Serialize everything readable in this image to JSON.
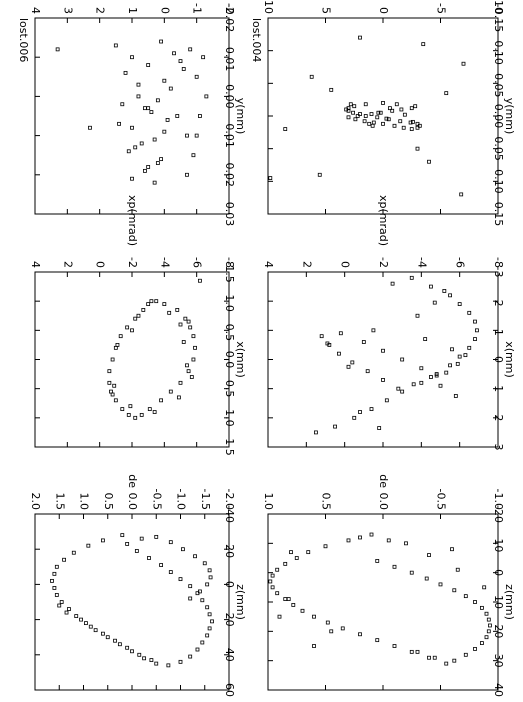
{
  "figure": {
    "rotation": "page rotated 90 degrees clockwise",
    "layout": "3 columns x 2 rows of scatter panels"
  },
  "chart_data": [
    {
      "type": "scatter",
      "title": "lost.004",
      "xlabel": "y(mm)",
      "ylabel": "yp(mrad)",
      "xlim": [
        -0.15,
        0.15
      ],
      "ylim": [
        -10,
        10
      ],
      "xticks": [
        "-0.15",
        "-0.10",
        "-0.05",
        "0.00",
        "0.05",
        "0.10",
        "0.15"
      ],
      "yticks": [
        "-10",
        "-5",
        "0",
        "5",
        "10"
      ],
      "x": [
        -0.02,
        -0.018,
        -0.015,
        -0.012,
        -0.01,
        -0.008,
        -0.005,
        -0.003,
        0,
        0.002,
        0.005,
        0.008,
        0.01,
        0.012,
        0.015,
        0.018,
        0.02,
        0.018,
        0.015,
        0.012,
        0.01,
        0.008,
        0.005,
        0.002,
        0,
        -0.003,
        -0.005,
        -0.008,
        -0.01,
        -0.012,
        -0.015,
        -0.018,
        -0.005,
        0.004,
        0.012,
        -0.012,
        0.015,
        -0.018,
        0.009,
        -0.002,
        -0.06,
        0.12,
        -0.11,
        0.09,
        -0.04,
        0.07,
        0.02,
        -0.08,
        -0.035,
        0.05,
        -0.12,
        0.095
      ],
      "y": [
        0,
        1.5,
        2.5,
        3,
        3.2,
        3,
        2.6,
        2,
        1.5,
        0.5,
        -0.5,
        -1.5,
        -2.4,
        -3,
        -3.2,
        -3,
        -2.5,
        -1.8,
        -1,
        0,
        0.8,
        1.6,
        2.4,
        3,
        2.2,
        1,
        0.2,
        -0.8,
        -1.6,
        -2.5,
        -2.8,
        -1.2,
        0.4,
        -0.3,
        1.2,
        -0.6,
        0.9,
        2.8,
        -2.6,
        -1.9,
        6.2,
        -6.8,
        -3.5,
        5.5,
        4.5,
        -4,
        8.5,
        -7,
        -5.5,
        -3,
        2,
        9.8
      ]
    },
    {
      "type": "scatter",
      "title": "lost.006",
      "xlabel": "y(mm)",
      "ylabel": "yp(mrad)",
      "xlim": [
        -0.02,
        0.03
      ],
      "ylim": [
        -2,
        4
      ],
      "xticks": [
        "-0.02",
        "-0.01",
        "0.00",
        "0.01",
        "0.02",
        "0.03"
      ],
      "yticks": [
        "-2",
        "-1",
        "0",
        "1",
        "2",
        "3",
        "4"
      ],
      "x": [
        -0.012,
        -0.01,
        -0.005,
        0,
        0.005,
        0.01,
        0.015,
        0.02,
        -0.008,
        -0.003,
        0.003,
        0.008,
        0.012,
        0.018,
        -0.013,
        -0.006,
        0.002,
        0.007,
        0.014,
        0.021,
        -0.011,
        -0.004,
        0.001,
        0.006,
        0.011,
        0.016,
        -0.009,
        -0.002,
        0.004,
        0.009,
        0.013,
        0.019,
        -0.014,
        -0.007,
        0,
        0.005,
        0.017,
        -0.01,
        0.003,
        0.01,
        0.022,
        -0.012,
        0.008
      ],
      "y": [
        -0.8,
        -1.2,
        -1.0,
        -1.3,
        -1.1,
        -1.0,
        -0.9,
        -0.7,
        0.5,
        0.8,
        0.6,
        1.0,
        0.7,
        0.5,
        1.5,
        1.2,
        1.3,
        1.4,
        1.1,
        1.0,
        -0.3,
        0.0,
        0.2,
        -0.1,
        0.3,
        0.1,
        -0.5,
        -0.2,
        0.4,
        0.0,
        0.9,
        0.6,
        0.1,
        -0.6,
        0.8,
        -0.4,
        0.2,
        1.0,
        0.5,
        -0.7,
        0.3,
        3.3,
        2.3
      ]
    },
    {
      "type": "scatter",
      "title": "",
      "xlabel": "x(mm)",
      "ylabel": "xp(mrad)",
      "xlim": [
        -3,
        3
      ],
      "ylim": [
        -8,
        4
      ],
      "xticks": [
        "-3",
        "-2",
        "-1",
        "0",
        "1",
        "2",
        "3"
      ],
      "yticks": [
        "-8",
        "-6",
        "-4",
        "-2",
        "0",
        "2",
        "4"
      ],
      "x": [
        -2.8,
        -2.5,
        -2.2,
        -1.9,
        -1.6,
        -1.3,
        -1.0,
        -0.7,
        -0.4,
        -0.1,
        0.2,
        0.5,
        0.8,
        1.1,
        1.4,
        1.7,
        2.0,
        2.3,
        -0.9,
        -0.6,
        -0.3,
        0,
        0.3,
        0.6,
        0.9,
        1.0,
        0.7,
        0.4,
        0.1,
        -0.2,
        -0.5,
        -0.8,
        -1.0,
        -0.7,
        -0.35,
        0.15,
        0.55,
        0.85,
        -0.55,
        0.25,
        2.5,
        -2.6,
        1.8,
        -1.5,
        0.45,
        -0.15,
        1.25,
        -1.95,
        2.35,
        -2.35
      ],
      "y": [
        -3.5,
        -4.5,
        -5.5,
        -6.0,
        -6.5,
        -6.8,
        -6.9,
        -6.8,
        -6.5,
        -6.0,
        -5.5,
        -4.8,
        -4.0,
        -3.0,
        -2.2,
        -1.4,
        -0.5,
        0.5,
        0.2,
        -1.0,
        -2.0,
        -3.0,
        -4.0,
        -4.5,
        -5.0,
        -2.8,
        -2.0,
        -1.2,
        -0.4,
        0.3,
        0.8,
        1.2,
        -1.5,
        -4.2,
        -5.6,
        -5.9,
        -4.8,
        -3.6,
        0.9,
        -0.2,
        1.5,
        -2.5,
        -0.8,
        -3.8,
        -5.3,
        -6.3,
        -5.8,
        -4.7,
        -1.8,
        -5.2
      ]
    },
    {
      "type": "scatter",
      "title": "",
      "xlabel": "x(mm)",
      "ylabel": "xp(mrad)",
      "xlim": [
        -1.5,
        1.5
      ],
      "ylim": [
        -8,
        4
      ],
      "xticks": [
        "-1.5",
        "-1.0",
        "-0.5",
        "0.0",
        "0.5",
        "1.0",
        "1.5"
      ],
      "yticks": [
        "-8",
        "-6",
        "-4",
        "-2",
        "0",
        "2",
        "4"
      ],
      "x": [
        -1.0,
        -0.95,
        -0.85,
        -0.7,
        -0.55,
        -0.4,
        -0.2,
        0,
        0.2,
        0.4,
        0.55,
        0.7,
        0.85,
        0.95,
        1.0,
        0.95,
        0.85,
        0.7,
        0.55,
        0.4,
        0.2,
        0,
        -0.2,
        -0.4,
        -0.55,
        -0.7,
        -0.85,
        -0.95,
        -1.0,
        -0.8,
        -0.6,
        -0.3,
        0.1,
        0.3,
        0.65,
        0.9,
        -0.5,
        0.45,
        -0.75,
        0.8,
        -0.25,
        0.6,
        -0.65,
        -1.35
      ],
      "y": [
        -3.2,
        -4.0,
        -4.8,
        -5.3,
        -5.6,
        -5.8,
        -5.9,
        -5.8,
        -5.5,
        -5.0,
        -4.4,
        -3.8,
        -3.1,
        -2.6,
        -2.2,
        -1.8,
        -1.4,
        -1.0,
        -0.7,
        -0.6,
        -0.6,
        -0.8,
        -1.0,
        -1.3,
        -1.7,
        -2.2,
        -2.7,
        -3.0,
        -3.5,
        -4.3,
        -5.0,
        -5.2,
        -5.4,
        -5.7,
        -4.9,
        -3.4,
        -2.0,
        -0.9,
        -2.4,
        -1.9,
        -1.1,
        -0.8,
        -5.5,
        -6.2
      ]
    },
    {
      "type": "scatter",
      "title": "",
      "xlabel": "z(mm)",
      "ylabel": "de",
      "xlim": [
        -20,
        40
      ],
      "ylim": [
        -1.0,
        1.0
      ],
      "xticks": [
        "-20",
        "-10",
        "0",
        "10",
        "20",
        "30",
        "40"
      ],
      "yticks": [
        "-1.0",
        "-0.5",
        "0.0",
        "0.5",
        "1.0"
      ],
      "x": [
        -13,
        -11,
        -9,
        -7,
        -5,
        -3,
        -1,
        1,
        3,
        5,
        7,
        9,
        11,
        13,
        15,
        17,
        19,
        21,
        23,
        25,
        27,
        29,
        31,
        30,
        28,
        26,
        24,
        22,
        20,
        18,
        16,
        14,
        12,
        10,
        8,
        6,
        4,
        2,
        0,
        -2,
        -4,
        -6,
        -8,
        -10,
        -12,
        25,
        -7,
        5,
        15,
        29,
        -11,
        20,
        9,
        -1,
        27
      ],
      "y": [
        0.1,
        0.3,
        0.5,
        0.65,
        0.75,
        0.85,
        0.92,
        0.96,
        0.98,
        0.96,
        0.92,
        0.85,
        0.78,
        0.7,
        0.6,
        0.48,
        0.35,
        0.2,
        0.05,
        -0.1,
        -0.25,
        -0.4,
        -0.55,
        -0.62,
        -0.72,
        -0.8,
        -0.86,
        -0.9,
        -0.92,
        -0.93,
        -0.92,
        -0.9,
        -0.86,
        -0.8,
        -0.72,
        -0.62,
        -0.5,
        -0.38,
        -0.25,
        -0.1,
        0.05,
        -0.4,
        -0.6,
        -0.2,
        0.2,
        0.6,
        0.8,
        -0.88,
        0.9,
        -0.45,
        -0.05,
        0.45,
        0.82,
        -0.65,
        -0.3
      ]
    },
    {
      "type": "scatter",
      "title": "",
      "xlabel": "z(mm)",
      "ylabel": "de",
      "xlim": [
        -40,
        60
      ],
      "ylim": [
        -2.0,
        2.0
      ],
      "xticks": [
        "-40",
        "-20",
        "0",
        "20",
        "40",
        "60"
      ],
      "yticks": [
        "-2.0",
        "-1.5",
        "-1.0",
        "-0.5",
        "0.0",
        "0.5",
        "1.0",
        "1.5",
        "2.0"
      ],
      "x": [
        -28,
        -25,
        -22,
        -18,
        -14,
        -10,
        -6,
        -2,
        2,
        6,
        10,
        14,
        18,
        22,
        26,
        30,
        34,
        38,
        42,
        45,
        46,
        44,
        41,
        37,
        33,
        29,
        25,
        21,
        17,
        13,
        9,
        5,
        1,
        -3,
        -7,
        -11,
        -15,
        -19,
        -23,
        -26,
        -27,
        -24,
        -20,
        -16,
        -12,
        -8,
        -4,
        0,
        4,
        8,
        12,
        16,
        20,
        24,
        28,
        32,
        36,
        40,
        43
      ],
      "y": [
        0.2,
        0.6,
        0.9,
        1.2,
        1.4,
        1.55,
        1.6,
        1.65,
        1.6,
        1.55,
        1.45,
        1.3,
        1.15,
        0.95,
        0.75,
        0.5,
        0.25,
        0,
        -0.25,
        -0.5,
        -0.75,
        -1.0,
        -1.2,
        -1.35,
        -1.45,
        -1.55,
        -1.6,
        -1.65,
        -1.6,
        -1.55,
        -1.45,
        -1.35,
        -1.2,
        -1.0,
        -0.8,
        -0.6,
        -0.35,
        -0.1,
        0.1,
        -0.2,
        -0.5,
        -0.8,
        -1.05,
        -1.3,
        -1.5,
        -1.6,
        -1.62,
        -1.55,
        -1.4,
        -1.2,
        1.5,
        1.35,
        1.05,
        0.85,
        0.6,
        0.35,
        0.1,
        -0.15,
        -0.4
      ]
    }
  ]
}
